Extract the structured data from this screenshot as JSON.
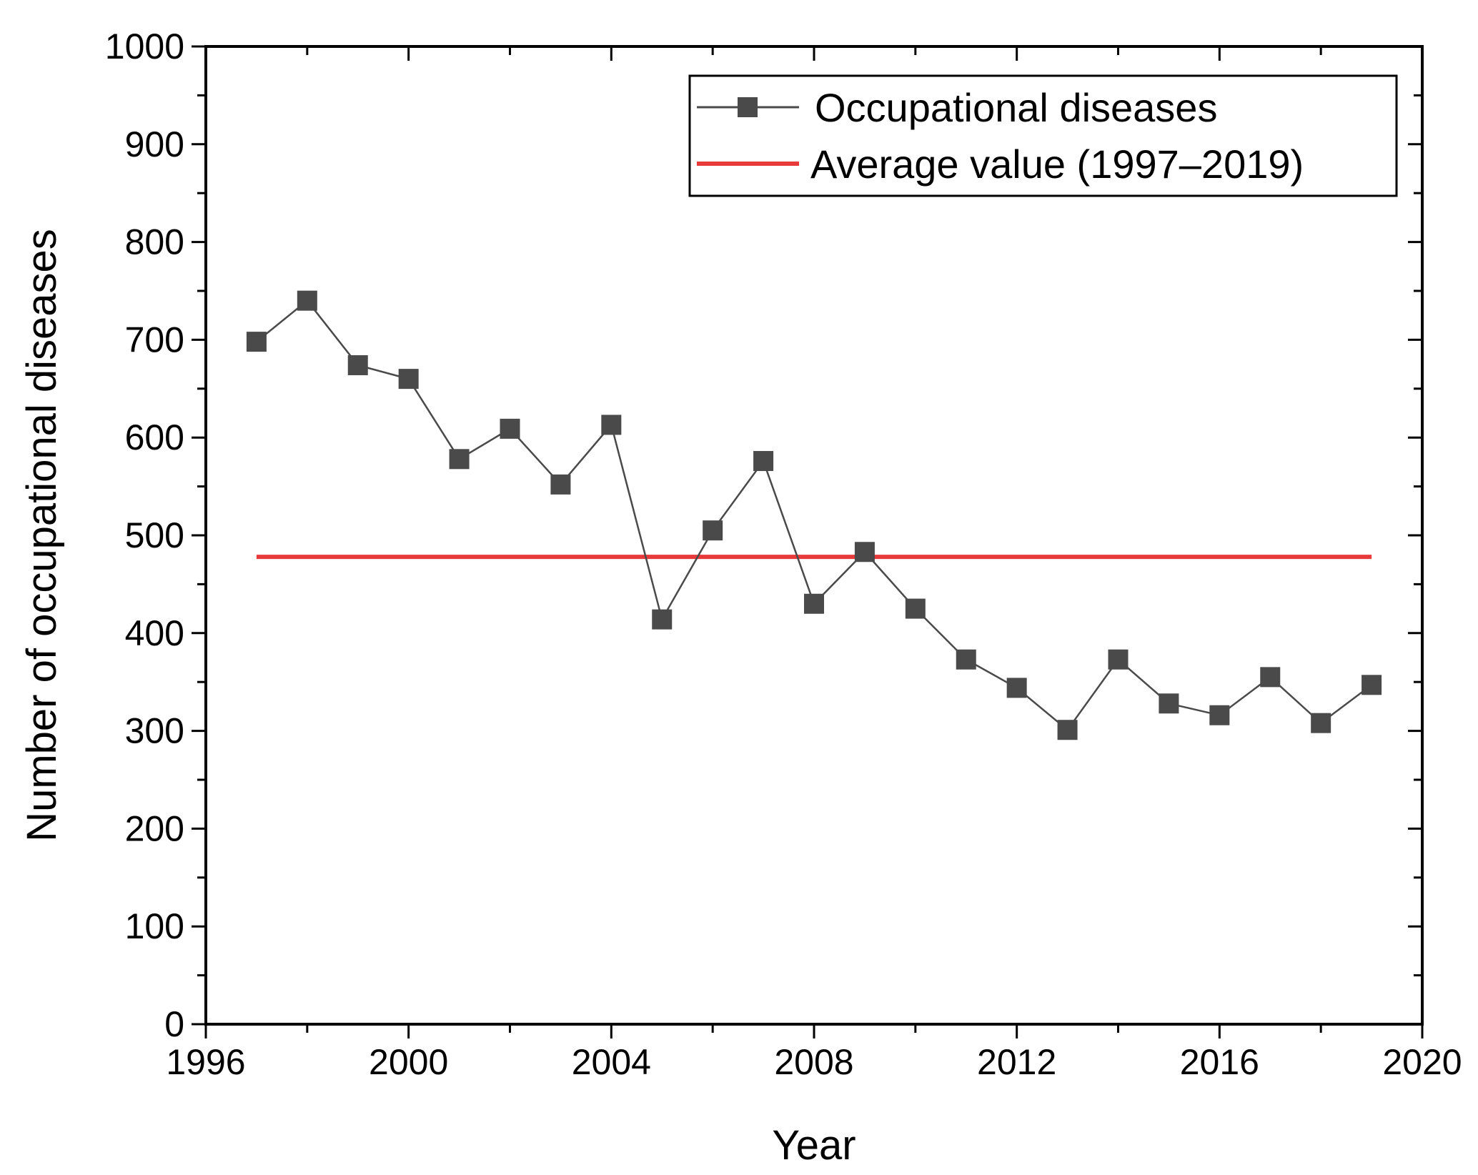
{
  "chart_data": {
    "type": "line",
    "title": "",
    "xlabel": "Year",
    "ylabel": "Number of occupational diseases",
    "xlim": [
      1996,
      2020
    ],
    "ylim": [
      0,
      1000
    ],
    "xticks": [
      1996,
      2000,
      2004,
      2008,
      2012,
      2016,
      2020
    ],
    "yticks": [
      0,
      100,
      200,
      300,
      400,
      500,
      600,
      700,
      800,
      900,
      1000
    ],
    "legend_position": "top-right",
    "grid": false,
    "series": [
      {
        "name": "Occupational diseases",
        "color": "#4a4a4a",
        "marker": "square",
        "x": [
          1997,
          1998,
          1999,
          2000,
          2001,
          2002,
          2003,
          2004,
          2005,
          2006,
          2007,
          2008,
          2009,
          2010,
          2011,
          2012,
          2013,
          2014,
          2015,
          2016,
          2017,
          2018,
          2019
        ],
        "values": [
          698,
          740,
          674,
          660,
          578,
          609,
          552,
          613,
          414,
          505,
          576,
          430,
          483,
          425,
          373,
          344,
          301,
          373,
          328,
          316,
          355,
          308,
          347
        ]
      },
      {
        "name": "Average value (1997–2019)",
        "color": "#e8393b",
        "marker": "none",
        "x": [
          1997,
          2019
        ],
        "values": [
          478,
          478
        ]
      }
    ]
  }
}
